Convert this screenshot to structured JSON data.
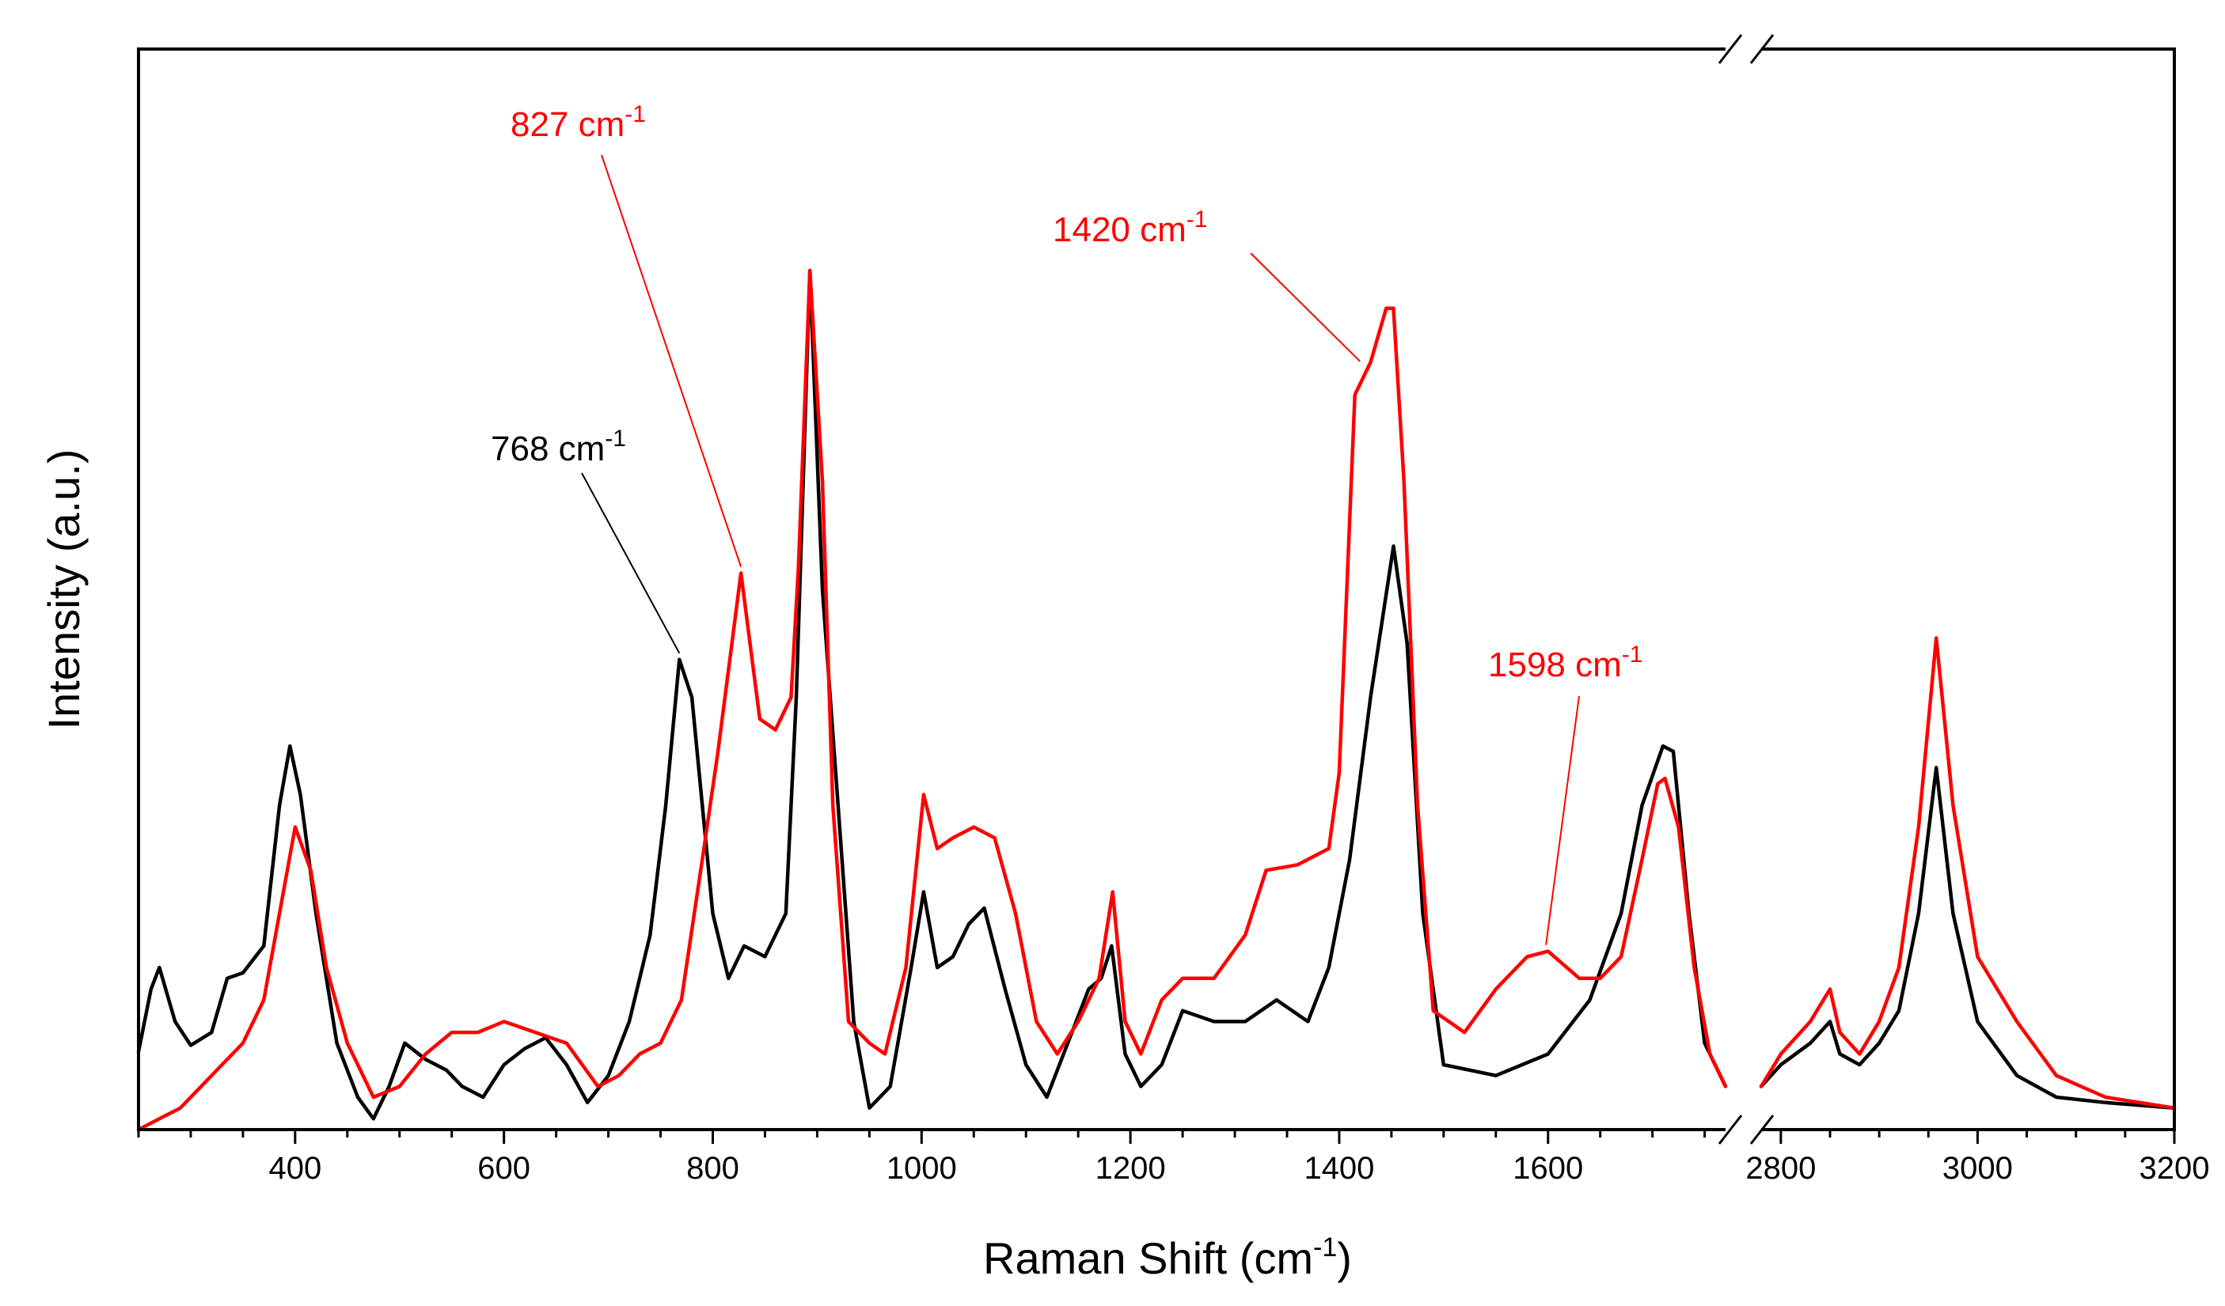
{
  "chart_data": {
    "type": "line",
    "title": "",
    "xlabel": "Raman Shift (cm",
    "xlabel_sup": "-1",
    "xlabel_tail": ")",
    "ylabel": "Intensity (a.u.)",
    "x_segments": [
      {
        "range": [
          250,
          1770
        ],
        "ticks": [
          400,
          600,
          800,
          1000,
          1200,
          1400,
          1600
        ]
      },
      {
        "range": [
          2780,
          3200
        ],
        "ticks": [
          2800,
          3000,
          3200
        ]
      }
    ],
    "ylim": [
      0,
      1.0
    ],
    "axis_break": true,
    "series": [
      {
        "name": "black",
        "color": "#000000",
        "points": [
          [
            250,
            0.072
          ],
          [
            262,
            0.13
          ],
          [
            270,
            0.15
          ],
          [
            285,
            0.1
          ],
          [
            300,
            0.078
          ],
          [
            320,
            0.09
          ],
          [
            335,
            0.14
          ],
          [
            350,
            0.145
          ],
          [
            370,
            0.17
          ],
          [
            385,
            0.3
          ],
          [
            395,
            0.355
          ],
          [
            405,
            0.31
          ],
          [
            420,
            0.2
          ],
          [
            440,
            0.08
          ],
          [
            460,
            0.03
          ],
          [
            475,
            0.01
          ],
          [
            490,
            0.04
          ],
          [
            505,
            0.08
          ],
          [
            525,
            0.065
          ],
          [
            545,
            0.055
          ],
          [
            560,
            0.04
          ],
          [
            580,
            0.03
          ],
          [
            600,
            0.06
          ],
          [
            620,
            0.075
          ],
          [
            640,
            0.085
          ],
          [
            660,
            0.06
          ],
          [
            680,
            0.025
          ],
          [
            700,
            0.05
          ],
          [
            720,
            0.1
          ],
          [
            740,
            0.18
          ],
          [
            755,
            0.3
          ],
          [
            768,
            0.435
          ],
          [
            780,
            0.4
          ],
          [
            800,
            0.2
          ],
          [
            815,
            0.14
          ],
          [
            830,
            0.17
          ],
          [
            850,
            0.16
          ],
          [
            870,
            0.2
          ],
          [
            880,
            0.4
          ],
          [
            893,
            0.795
          ],
          [
            905,
            0.5
          ],
          [
            920,
            0.3
          ],
          [
            935,
            0.1
          ],
          [
            950,
            0.02
          ],
          [
            970,
            0.04
          ],
          [
            990,
            0.15
          ],
          [
            1002,
            0.22
          ],
          [
            1015,
            0.15
          ],
          [
            1030,
            0.16
          ],
          [
            1045,
            0.19
          ],
          [
            1060,
            0.205
          ],
          [
            1080,
            0.13
          ],
          [
            1100,
            0.06
          ],
          [
            1120,
            0.03
          ],
          [
            1140,
            0.08
          ],
          [
            1160,
            0.13
          ],
          [
            1172,
            0.14
          ],
          [
            1182,
            0.17
          ],
          [
            1195,
            0.07
          ],
          [
            1210,
            0.04
          ],
          [
            1230,
            0.06
          ],
          [
            1250,
            0.11
          ],
          [
            1280,
            0.1
          ],
          [
            1310,
            0.1
          ],
          [
            1340,
            0.12
          ],
          [
            1370,
            0.1
          ],
          [
            1390,
            0.15
          ],
          [
            1410,
            0.25
          ],
          [
            1430,
            0.4
          ],
          [
            1452,
            0.54
          ],
          [
            1465,
            0.45
          ],
          [
            1480,
            0.2
          ],
          [
            1500,
            0.06
          ],
          [
            1550,
            0.05
          ],
          [
            1600,
            0.07
          ],
          [
            1640,
            0.12
          ],
          [
            1670,
            0.2
          ],
          [
            1690,
            0.3
          ],
          [
            1710,
            0.355
          ],
          [
            1720,
            0.35
          ],
          [
            1735,
            0.2
          ],
          [
            1750,
            0.08
          ],
          [
            1770,
            0.04
          ],
          [
            2780,
            0.04
          ],
          [
            2800,
            0.06
          ],
          [
            2830,
            0.08
          ],
          [
            2850,
            0.1
          ],
          [
            2860,
            0.07
          ],
          [
            2880,
            0.06
          ],
          [
            2900,
            0.08
          ],
          [
            2920,
            0.11
          ],
          [
            2940,
            0.2
          ],
          [
            2958,
            0.335
          ],
          [
            2975,
            0.2
          ],
          [
            3000,
            0.1
          ],
          [
            3040,
            0.05
          ],
          [
            3080,
            0.03
          ],
          [
            3130,
            0.025
          ],
          [
            3200,
            0.02
          ]
        ]
      },
      {
        "name": "red",
        "color": "#ff0000",
        "points": [
          [
            250,
            0.0
          ],
          [
            270,
            0.01
          ],
          [
            290,
            0.02
          ],
          [
            310,
            0.04
          ],
          [
            330,
            0.06
          ],
          [
            350,
            0.08
          ],
          [
            370,
            0.12
          ],
          [
            385,
            0.2
          ],
          [
            400,
            0.28
          ],
          [
            415,
            0.24
          ],
          [
            430,
            0.15
          ],
          [
            450,
            0.08
          ],
          [
            475,
            0.03
          ],
          [
            500,
            0.04
          ],
          [
            525,
            0.07
          ],
          [
            550,
            0.09
          ],
          [
            575,
            0.09
          ],
          [
            600,
            0.1
          ],
          [
            630,
            0.09
          ],
          [
            660,
            0.08
          ],
          [
            690,
            0.04
          ],
          [
            710,
            0.05
          ],
          [
            730,
            0.07
          ],
          [
            750,
            0.08
          ],
          [
            770,
            0.12
          ],
          [
            790,
            0.25
          ],
          [
            805,
            0.35
          ],
          [
            827,
            0.515
          ],
          [
            845,
            0.38
          ],
          [
            860,
            0.37
          ],
          [
            875,
            0.4
          ],
          [
            882,
            0.52
          ],
          [
            893,
            0.795
          ],
          [
            905,
            0.6
          ],
          [
            915,
            0.3
          ],
          [
            930,
            0.1
          ],
          [
            950,
            0.08
          ],
          [
            965,
            0.07
          ],
          [
            985,
            0.15
          ],
          [
            1002,
            0.31
          ],
          [
            1015,
            0.26
          ],
          [
            1030,
            0.27
          ],
          [
            1050,
            0.28
          ],
          [
            1070,
            0.27
          ],
          [
            1090,
            0.2
          ],
          [
            1110,
            0.1
          ],
          [
            1130,
            0.07
          ],
          [
            1150,
            0.1
          ],
          [
            1170,
            0.14
          ],
          [
            1183,
            0.22
          ],
          [
            1195,
            0.1
          ],
          [
            1210,
            0.07
          ],
          [
            1230,
            0.12
          ],
          [
            1250,
            0.14
          ],
          [
            1280,
            0.14
          ],
          [
            1310,
            0.18
          ],
          [
            1330,
            0.24
          ],
          [
            1360,
            0.245
          ],
          [
            1390,
            0.26
          ],
          [
            1400,
            0.33
          ],
          [
            1415,
            0.68
          ],
          [
            1430,
            0.71
          ],
          [
            1445,
            0.76
          ],
          [
            1452,
            0.76
          ],
          [
            1462,
            0.6
          ],
          [
            1475,
            0.3
          ],
          [
            1490,
            0.11
          ],
          [
            1520,
            0.09
          ],
          [
            1550,
            0.13
          ],
          [
            1580,
            0.16
          ],
          [
            1600,
            0.165
          ],
          [
            1630,
            0.14
          ],
          [
            1650,
            0.14
          ],
          [
            1670,
            0.16
          ],
          [
            1690,
            0.25
          ],
          [
            1705,
            0.32
          ],
          [
            1712,
            0.325
          ],
          [
            1725,
            0.28
          ],
          [
            1740,
            0.15
          ],
          [
            1755,
            0.07
          ],
          [
            1770,
            0.04
          ],
          [
            2780,
            0.04
          ],
          [
            2800,
            0.07
          ],
          [
            2830,
            0.1
          ],
          [
            2850,
            0.13
          ],
          [
            2860,
            0.09
          ],
          [
            2880,
            0.07
          ],
          [
            2900,
            0.1
          ],
          [
            2920,
            0.15
          ],
          [
            2940,
            0.28
          ],
          [
            2958,
            0.455
          ],
          [
            2975,
            0.3
          ],
          [
            3000,
            0.16
          ],
          [
            3040,
            0.1
          ],
          [
            3080,
            0.05
          ],
          [
            3130,
            0.03
          ],
          [
            3200,
            0.02
          ]
        ]
      }
    ],
    "annotations": [
      {
        "label": "768 cm",
        "sup": "-1",
        "color": "#000000",
        "x": 768,
        "y": 0.435
      },
      {
        "label": "827 cm",
        "sup": "-1",
        "color": "#ff0000",
        "x": 827,
        "y": 0.515
      },
      {
        "label": "1420 cm",
        "sup": "-1",
        "color": "#ff0000",
        "x": 1420,
        "y": 0.705
      },
      {
        "label": "1598 cm",
        "sup": "-1",
        "color": "#ff0000",
        "x": 1598,
        "y": 0.165
      }
    ]
  }
}
